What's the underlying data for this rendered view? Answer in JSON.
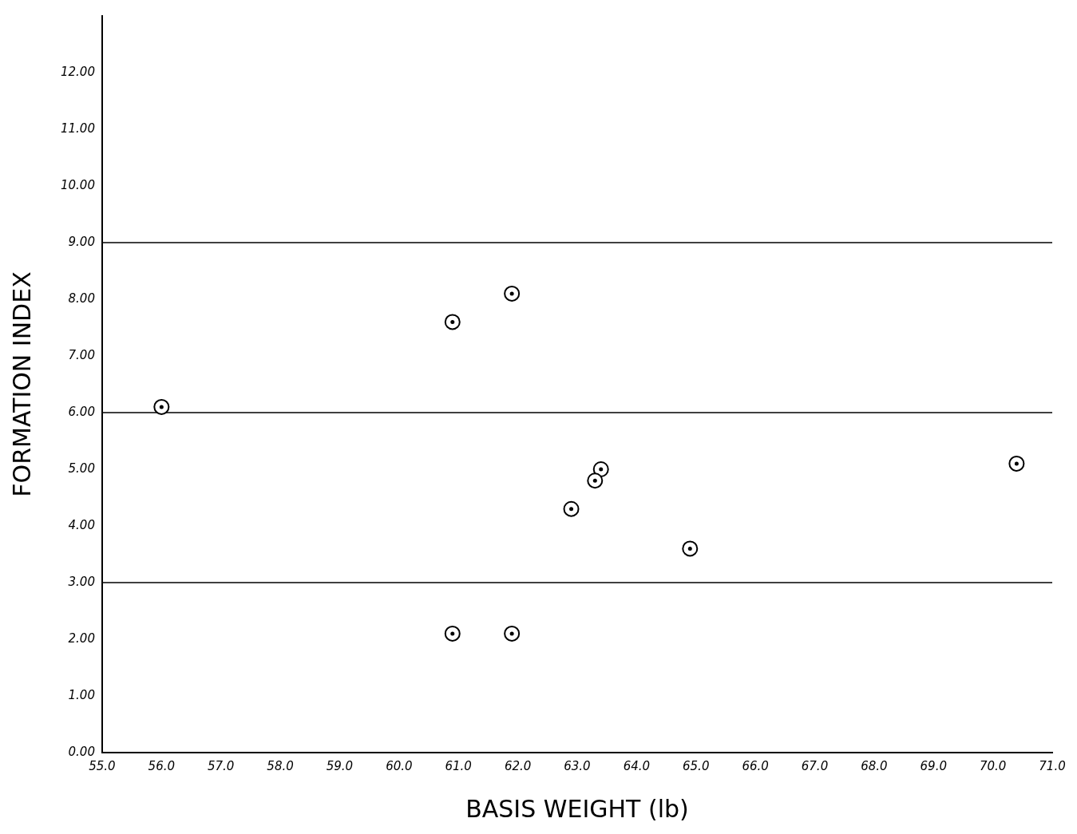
{
  "chart_data": {
    "type": "scatter",
    "xlabel": "BASIS WEIGHT (lb)",
    "ylabel": "FORMATION INDEX",
    "x": [
      56.0,
      60.9,
      61.9,
      63.4,
      63.3,
      62.9,
      64.9,
      70.4,
      60.9,
      61.9
    ],
    "series": [
      {
        "color": "#000000",
        "values": [
          6.1,
          7.6,
          8.1,
          5.0,
          4.8,
          4.3,
          3.6,
          5.1,
          2.1,
          2.1
        ]
      }
    ],
    "xlim": [
      55,
      71
    ],
    "xticks": [
      {
        "value": 55,
        "label": "55.0"
      },
      {
        "value": 56,
        "label": "56.0"
      },
      {
        "value": 57,
        "label": "57.0"
      },
      {
        "value": 58,
        "label": "58.0"
      },
      {
        "value": 59,
        "label": "59.0"
      },
      {
        "value": 60,
        "label": "60.0"
      },
      {
        "value": 61,
        "label": "61.0"
      },
      {
        "value": 62,
        "label": "62.0"
      },
      {
        "value": 63,
        "label": "63.0"
      },
      {
        "value": 64,
        "label": "64.0"
      },
      {
        "value": 65,
        "label": "65.0"
      },
      {
        "value": 66,
        "label": "66.0"
      },
      {
        "value": 67,
        "label": "67.0"
      },
      {
        "value": 68,
        "label": "68.0"
      },
      {
        "value": 69,
        "label": "69.0"
      },
      {
        "value": 70,
        "label": "70.0"
      },
      {
        "value": 71,
        "label": "71.0"
      }
    ],
    "ylim": [
      0,
      13
    ],
    "yticks": [
      {
        "value": 0,
        "label": "0.00"
      },
      {
        "value": 1,
        "label": "1.00"
      },
      {
        "value": 2,
        "label": "2.00"
      },
      {
        "value": 3,
        "label": "3.00"
      },
      {
        "value": 4,
        "label": "4.00"
      },
      {
        "value": 5,
        "label": "5.00"
      },
      {
        "value": 6,
        "label": "6.00"
      },
      {
        "value": 7,
        "label": "7.00"
      },
      {
        "value": 8,
        "label": "8.00"
      },
      {
        "value": 9,
        "label": "9.00"
      },
      {
        "value": 10,
        "label": "10.00"
      },
      {
        "value": 11,
        "label": "11.00"
      },
      {
        "value": 12,
        "label": "12.00"
      }
    ],
    "ref_lines": [
      {
        "axis": "y",
        "value": 3,
        "color": "#000000"
      },
      {
        "axis": "y",
        "value": 6,
        "color": "#000000"
      },
      {
        "axis": "y",
        "value": 9,
        "color": "#000000"
      }
    ],
    "grid": false,
    "legend": false,
    "marker": "circle"
  }
}
